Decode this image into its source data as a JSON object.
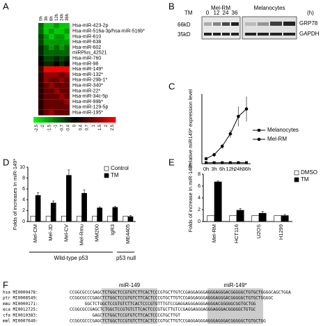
{
  "panel_labels": [
    "A",
    "B",
    "C",
    "D",
    "E",
    "F"
  ],
  "chart_data": [
    {
      "type": "heatmap",
      "columns": [
        "0h",
        "3h",
        "6h",
        "12h",
        "24h",
        "36h"
      ],
      "rows": [
        "Hsa-miR-423-2p",
        "Hsa-miR-516a-3p/hsa-miR-516b*",
        "Hsa-miR-610",
        "Hsa-miR-638",
        "Hsa-miR-602",
        "miRPlus_42521",
        "Hsa-miR-760",
        "Hsa-miR-98",
        "Hsa-miR-149*",
        "Hsa-miR-132*",
        "Hsa-miR-29b-1*",
        "Hsa-miR-340*",
        "Hsa-miR-22*",
        "Hsa-miR-34c-5p",
        "Hsa-miR-99b*",
        "Hsa-miR-129-5p",
        "Hsa-miR-195*"
      ],
      "z": [
        [
          -1,
          -2,
          -2,
          -1.5,
          -2,
          -2
        ],
        [
          -1,
          -2,
          -1.5,
          -2,
          -2,
          -1.5
        ],
        [
          -0.7,
          -1.5,
          -2,
          -1.5,
          -1.5,
          -2
        ],
        [
          -0.7,
          -1.5,
          -1.5,
          -1.5,
          -1.5,
          -1.5
        ],
        [
          -0.4,
          -1,
          -1.5,
          -1,
          -1.5,
          -1
        ],
        [
          -0.4,
          -1,
          -1,
          -1,
          -1,
          -1
        ],
        [
          0,
          -0.7,
          -0.7,
          -0.4,
          -0.7,
          -0.4
        ],
        [
          0,
          -0.4,
          -0.4,
          0,
          -0.4,
          0
        ],
        [
          0.7,
          2.5,
          2.5,
          2.5,
          2.5,
          2.5
        ],
        [
          0.4,
          1.5,
          1.5,
          1.5,
          1,
          1.5
        ],
        [
          0.4,
          1.5,
          1,
          1,
          1.5,
          1
        ],
        [
          0.4,
          1,
          1.5,
          1,
          1,
          1
        ],
        [
          0.4,
          1,
          1,
          1.5,
          1,
          1
        ],
        [
          0.4,
          1,
          1,
          1,
          1.5,
          1
        ],
        [
          0.4,
          1,
          1,
          1,
          1,
          1.5
        ],
        [
          0.4,
          1,
          1,
          1,
          1,
          1
        ],
        [
          0.4,
          1,
          1.5,
          1,
          1,
          1
        ]
      ],
      "zlim": [
        -2.5,
        2.5
      ],
      "colors": [
        "#00ff00",
        "#000000",
        "#ff0000"
      ],
      "colorbar_ticks": [
        -2.5,
        -2,
        -1.5,
        -1,
        -0.7,
        -0.4,
        0,
        0.4,
        0.7,
        1,
        1.5,
        2,
        2.5
      ]
    },
    {
      "type": "line",
      "categories": [
        "0h",
        "3h",
        "6h",
        "12h",
        "24h",
        "36h"
      ],
      "ylabel": "Relative miR149* expression level",
      "ylim": [
        0,
        140
      ],
      "series": [
        {
          "name": "Melanocytes",
          "color": "#000000",
          "marker": "square",
          "values": [
            2,
            2,
            2,
            2,
            2,
            2
          ]
        },
        {
          "name": "Mel-RM",
          "color": "#000000",
          "marker": "circle",
          "values": [
            10,
            18,
            35,
            60,
            95,
            110
          ],
          "errors": [
            3,
            4,
            5,
            8,
            20,
            25
          ]
        }
      ]
    },
    {
      "type": "bar",
      "categories": [
        "Mel-CM",
        "Mel-JD",
        "Mel-CV",
        "Mel-Rmu",
        "MM200",
        "IgR3",
        "ME4405"
      ],
      "ylabel": "Folds of increases In miR-149*",
      "ylim": [
        0,
        10
      ],
      "yticks": [
        0,
        2,
        4,
        6,
        8,
        10
      ],
      "groups": [
        "Wild-type p53",
        "p53 null"
      ],
      "series": [
        {
          "name": "Control",
          "color": "#ffffff",
          "values": [
            1,
            1,
            1,
            1,
            1,
            1,
            1
          ]
        },
        {
          "name": "TM",
          "color": "#000000",
          "values": [
            4.8,
            3.4,
            8.5,
            5.2,
            2.5,
            2.6,
            0.9
          ],
          "errors": [
            0.5,
            0.4,
            1,
            0.6,
            0.2,
            0.2,
            0.2
          ]
        }
      ]
    },
    {
      "type": "bar",
      "categories": [
        "Mel-RM",
        "HCT116",
        "U2OS",
        "H1299"
      ],
      "ylabel": "Folds of increase In miR-149*",
      "ylim": [
        0,
        8
      ],
      "yticks": [
        0,
        2,
        4,
        6,
        8
      ],
      "series": [
        {
          "name": "DMSO",
          "color": "#ffffff",
          "values": [
            1,
            1,
            1,
            1
          ]
        },
        {
          "name": "TM",
          "color": "#000000",
          "values": [
            6.7,
            1.9,
            1.4,
            1
          ],
          "errors": [
            0.15,
            0.3,
            0.3,
            0.2
          ]
        }
      ]
    }
  ],
  "blot": {
    "groups": [
      "Mel-RM",
      "Melanocytes"
    ],
    "treatment": "TM",
    "times": [
      "0",
      "12",
      "24",
      "36"
    ],
    "unit": "(h)",
    "markers": [
      "66kD",
      "35kD"
    ],
    "proteins": [
      "GRP78",
      "GAPDH"
    ]
  },
  "alignment": {
    "labels": [
      "miR-149",
      "miR-149*"
    ],
    "rows": [
      {
        "species": "hsa MI0000478:",
        "sequence": "CCGGCGCCCGAGCTCTGGCTCCGTGTCTTCACTCCCGTGCTTGTCCGAGGAGGGAGGGAGGGACGGGGGCTGTGCTGGGGCAGCTGGA"
      },
      {
        "species": "ptr MI0008549:",
        "sequence": "CCGGCGCCCGAGCTCTGGCTCCGTGTCTTCACTCCCGTGCTTGTCCGAGGAGGGAGGGAGGGACGGGGGCTGTGCTGGGGC"
      },
      {
        "species": "mmu MI0000171:",
        "sequence": "GGCTCTGGCTCCGTGTCTTCACTCCCGTGTTTGTCCGAGGAGGGAGGGAGGGACGGGGGCGGTGCTGG"
      },
      {
        "species": "eca MI0012725:",
        "sequence": "CCGGCGCCGAGCTCTGGCTCCGTGTCTTCACTCCCGTGCTTGTCCGAGGAGGGAGGGAGGGACGGGGGCTGTGC"
      },
      {
        "species": "cfa MI0010383:",
        "sequence": "GAGCTCTGGCTCCGTGTCTTCACTCCCGTGCTTGT"
      },
      {
        "species": "mml MI0007640:",
        "sequence": "CCGGCGCCCGAGCTCTGGCTCCGTGTCTTCACTCCCGTGCTTGTCCGAGGAGGGAGGGAGGGACGGGGGCTGTGCTGG"
      }
    ]
  }
}
